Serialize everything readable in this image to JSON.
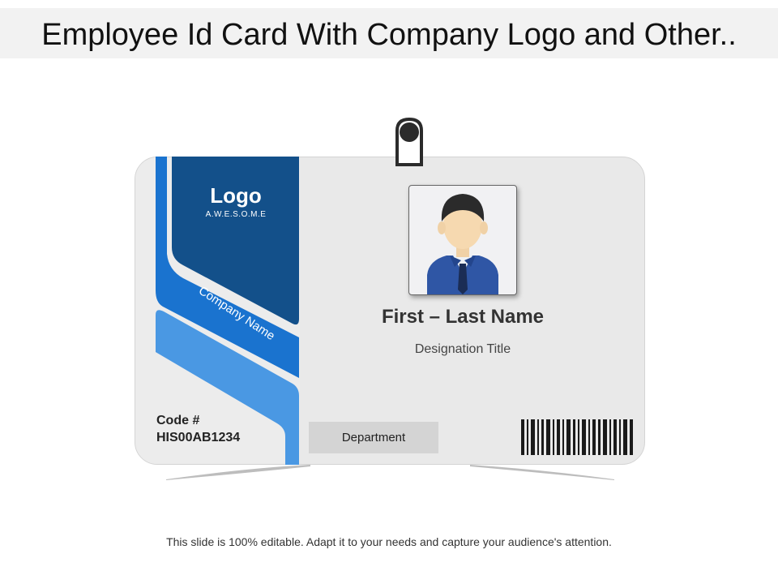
{
  "title": "Employee Id Card With Company Logo and Other..",
  "card": {
    "logo": "Logo",
    "logo_tagline": "A.W.E.S.O.M.E",
    "company_name": "Company Name",
    "code_label": "Code #",
    "code_value": "HIS00AB1234",
    "name": "First – Last Name",
    "designation": "Designation Title",
    "department": "Department",
    "icons": {
      "clip": "badge-clip-icon",
      "photo": "person-avatar-icon",
      "barcode": "barcode-icon"
    }
  },
  "footer": "This slide is 100% editable. Adapt it to your needs and capture your audience's attention.",
  "colors": {
    "dark_blue": "#13508a",
    "mid_blue": "#1a73cf",
    "light_blue": "#4a98e3",
    "card_bg": "#e9e9e9",
    "suit_blue": "#2f56a5"
  }
}
